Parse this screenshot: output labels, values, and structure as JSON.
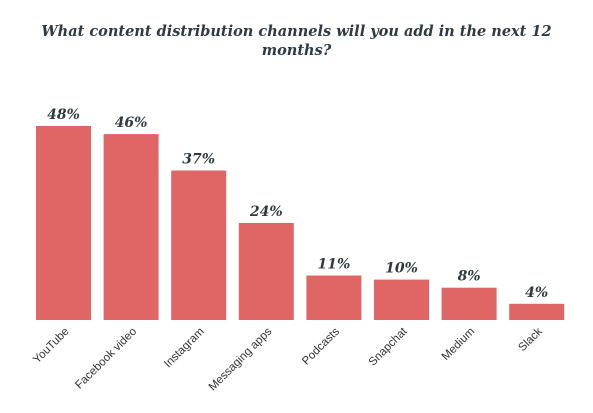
{
  "chart_data": {
    "type": "bar",
    "title": "What content distribution channels will you add in the next 12 months?",
    "xlabel": "",
    "ylabel": "",
    "categories": [
      "YouTube",
      "Facebook video",
      "Instagram",
      "Messaging apps",
      "Podcasts",
      "Snapchat",
      "Medium",
      "Slack"
    ],
    "values": [
      48,
      46,
      37,
      24,
      11,
      10,
      8,
      4
    ],
    "value_labels": [
      "48%",
      "46%",
      "37%",
      "24%",
      "11%",
      "10%",
      "8%",
      "4%"
    ],
    "ylim": [
      0,
      48
    ],
    "grid": false,
    "legend": "none",
    "bar_color": "#e06666",
    "text_color": "#2f3a42"
  }
}
